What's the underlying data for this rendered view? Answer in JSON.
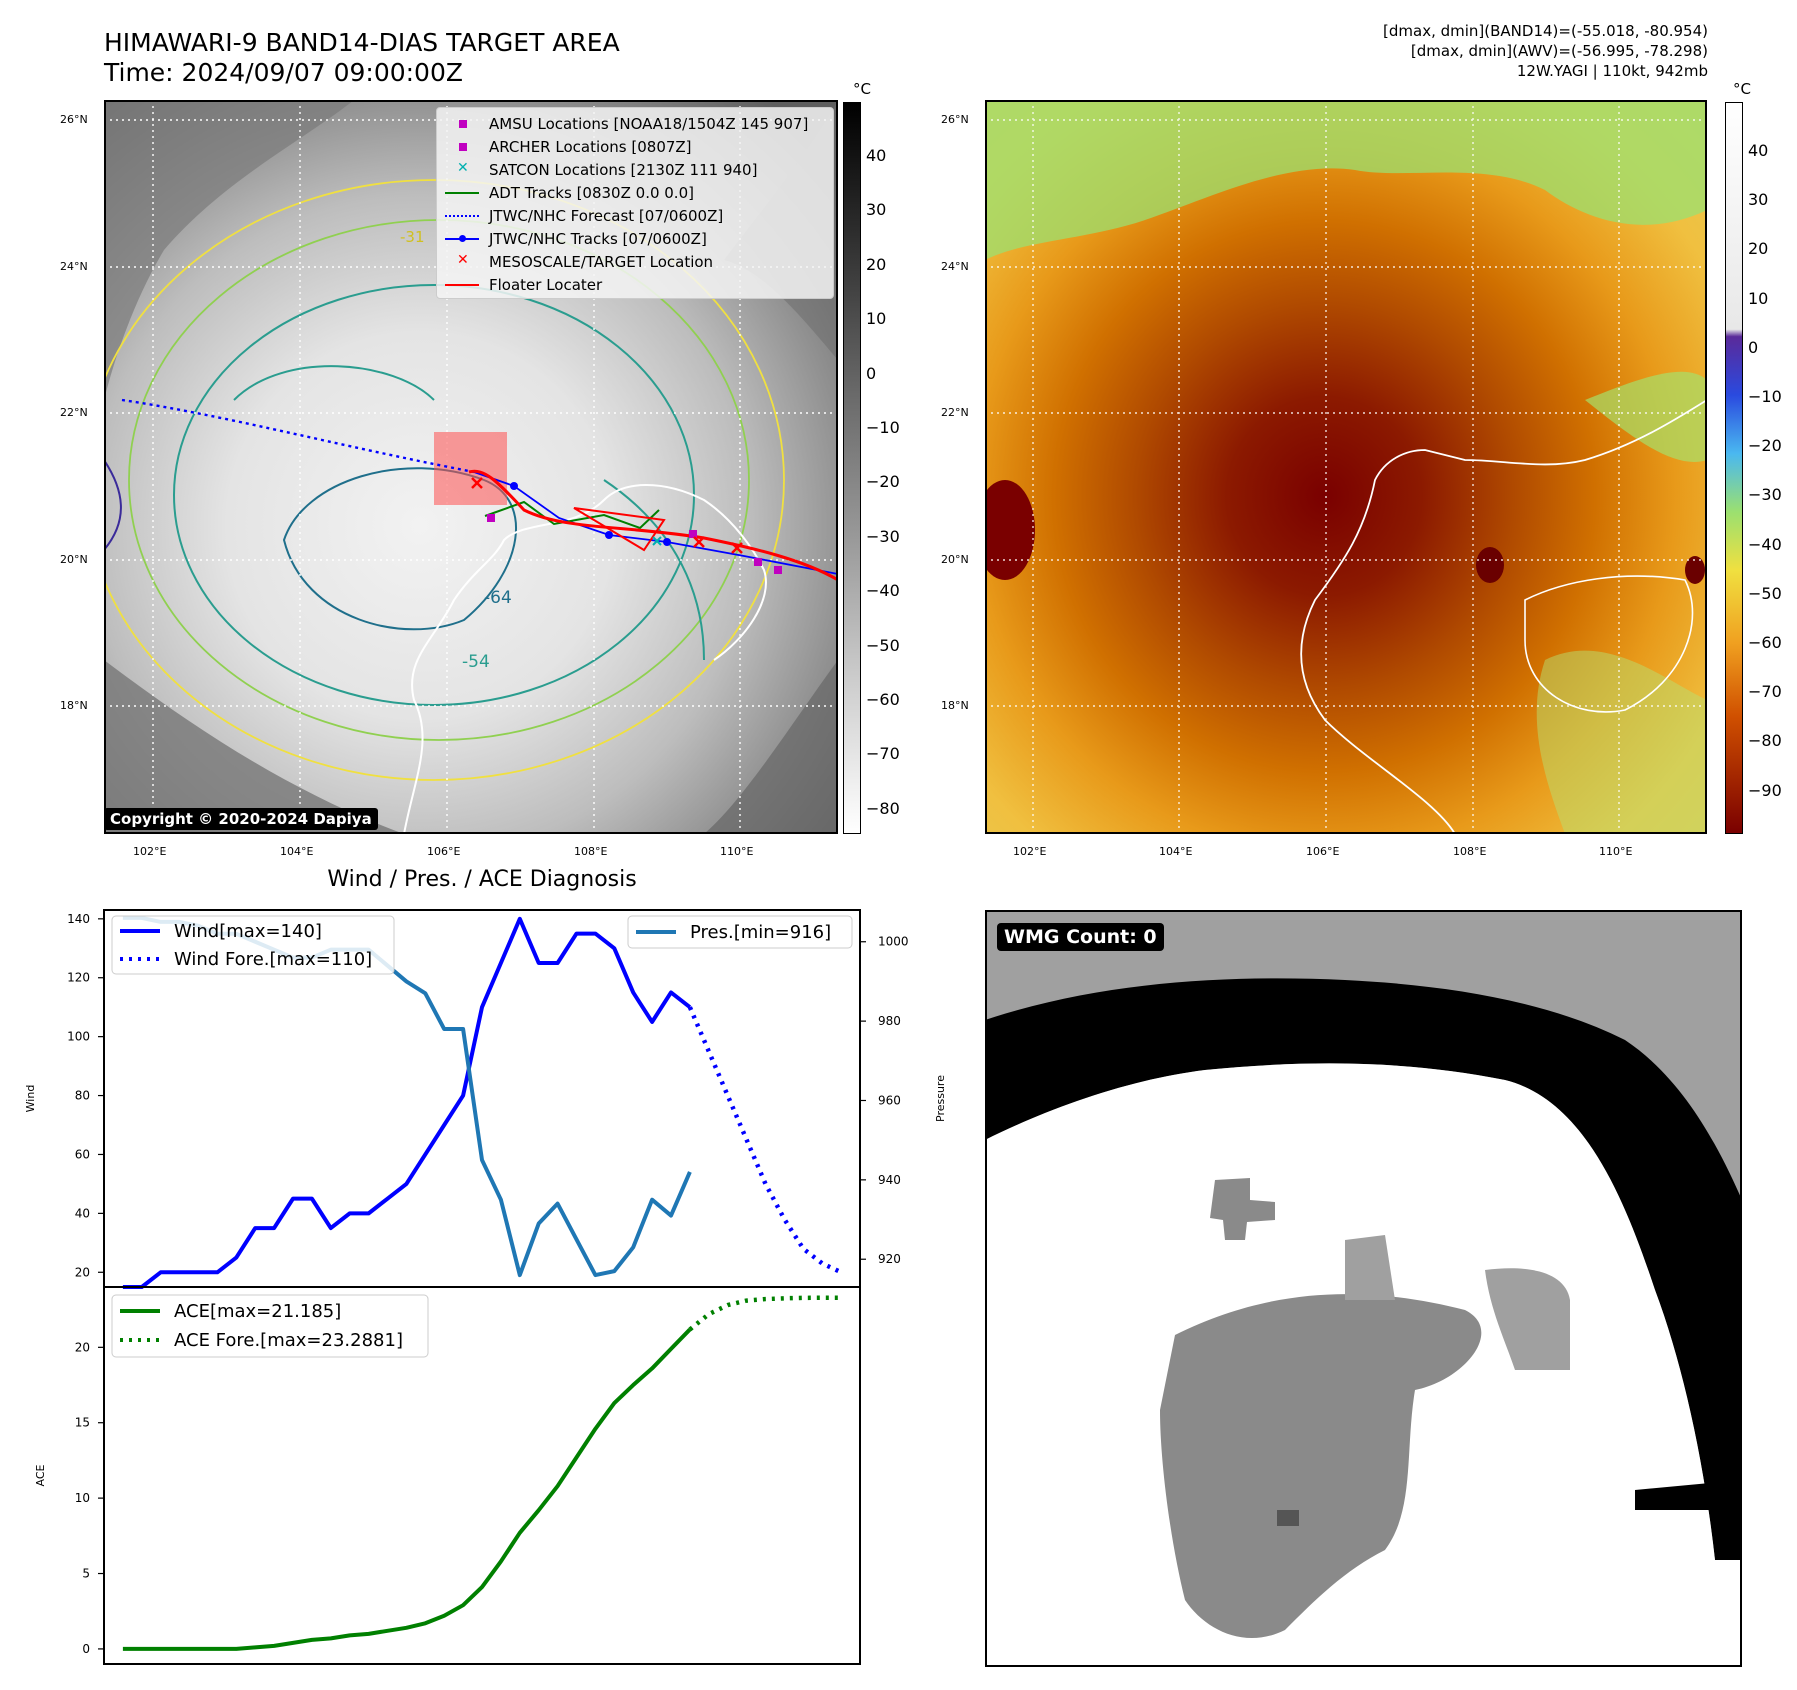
{
  "header": {
    "title_line1": "HIMAWARI-9 BAND14-DIAS TARGET AREA",
    "title_line2": "Time: 2024/09/07 09:00:00Z",
    "stat_line1": "[dmax, dmin](BAND14)=(-55.018, -80.954)",
    "stat_line2": "[dmax, dmin](AWV)=(-56.995, -78.298)",
    "stat_line3": "12W.YAGI | 110kt, 942mb"
  },
  "map": {
    "lat_labels": [
      "26°N",
      "24°N",
      "22°N",
      "20°N",
      "18°N"
    ],
    "lon_labels": [
      "102°E",
      "104°E",
      "106°E",
      "108°E",
      "110°E"
    ],
    "copyright": "Copyright © 2020-2024 Dapiya",
    "contour_labels": [
      "-64",
      "-54",
      "-31"
    ]
  },
  "legend_items": [
    {
      "label": "AMSU Locations [NOAA18/1504Z 145 907]",
      "marker": "square",
      "color": "#c000c0"
    },
    {
      "label": "ARCHER Locations [0807Z]",
      "marker": "square",
      "color": "#c000c0"
    },
    {
      "label": "SATCON Locations [2130Z 111 940]",
      "marker": "x",
      "color": "#00b0b0"
    },
    {
      "label": "ADT Tracks [0830Z 0.0 0.0]",
      "marker": "line",
      "color": "#008000"
    },
    {
      "label": "JTWC/NHC Forecast [07/0600Z]",
      "marker": "dotted",
      "color": "#0000ff"
    },
    {
      "label": "JTWC/NHC Tracks [07/0600Z]",
      "marker": "dotline",
      "color": "#0000ff"
    },
    {
      "label": "MESOSCALE/TARGET Location",
      "marker": "x",
      "color": "#ff0000"
    },
    {
      "label": "Floater Locater",
      "marker": "line",
      "color": "#ff0000"
    }
  ],
  "colorbar_left": {
    "unit": "°C",
    "ticks": [
      "40",
      "30",
      "20",
      "10",
      "0",
      "−10",
      "−20",
      "−30",
      "−40",
      "−50",
      "−60",
      "−70",
      "−80"
    ]
  },
  "colorbar_right": {
    "unit": "°C",
    "ticks": [
      "40",
      "30",
      "20",
      "10",
      "0",
      "−10",
      "−20",
      "−30",
      "−40",
      "−50",
      "−60",
      "−70",
      "−80",
      "−90"
    ]
  },
  "wmg": {
    "label": "WMG Count: 0"
  },
  "chart_data": {
    "type": "line",
    "title": "Wind / Pres. / ACE Diagnosis",
    "wind_pres": {
      "ylabel_left": "Wind",
      "ylabel_right": "Pressure",
      "ylim_left": [
        15,
        143
      ],
      "ylim_right": [
        913,
        1008
      ],
      "yticks_left": [
        20,
        40,
        60,
        80,
        100,
        120,
        140
      ],
      "yticks_right": [
        920,
        940,
        960,
        980,
        1000
      ],
      "legend_left": [
        "Wind[max=140]",
        "Wind Fore.[max=110]"
      ],
      "legend_right": [
        "Pres.[min=916]"
      ],
      "series": [
        {
          "name": "Wind[max=140]",
          "color": "#0000ff",
          "style": "solid",
          "x": [
            0,
            1,
            2,
            3,
            4,
            5,
            6,
            7,
            8,
            9,
            10,
            11,
            12,
            13,
            14,
            15,
            16,
            17,
            18,
            19,
            20,
            21,
            22,
            23,
            24,
            25,
            26,
            27,
            28,
            29,
            30
          ],
          "values": [
            15,
            15,
            20,
            20,
            20,
            20,
            25,
            35,
            35,
            45,
            45,
            35,
            40,
            40,
            45,
            50,
            60,
            70,
            80,
            110,
            125,
            140,
            125,
            125,
            135,
            135,
            130,
            115,
            105,
            115,
            110
          ]
        },
        {
          "name": "Wind Fore.[max=110]",
          "color": "#0000ff",
          "style": "dotted",
          "x": [
            30,
            31,
            32,
            33,
            34,
            35,
            36,
            37,
            38
          ],
          "values": [
            110,
            95,
            80,
            65,
            50,
            38,
            28,
            23,
            20
          ]
        },
        {
          "name": "Pres.[min=916]",
          "color": "#1f77b4",
          "style": "solid",
          "axis": "right",
          "x": [
            0,
            1,
            2,
            3,
            4,
            5,
            6,
            7,
            8,
            9,
            10,
            11,
            12,
            13,
            14,
            15,
            16,
            17,
            18,
            19,
            20,
            21,
            22,
            23,
            24,
            25,
            26,
            27,
            28,
            29,
            30
          ],
          "values": [
            1006,
            1006,
            1005,
            1005,
            1004,
            1002,
            1002,
            1000,
            998,
            996,
            996,
            998,
            998,
            998,
            994,
            990,
            987,
            978,
            978,
            945,
            935,
            916,
            929,
            934,
            925,
            916,
            917,
            923,
            935,
            931,
            942
          ]
        }
      ]
    },
    "ace": {
      "ylabel": "ACE",
      "ylim": [
        -1,
        24
      ],
      "yticks": [
        0,
        5,
        10,
        15,
        20
      ],
      "legend": [
        "ACE[max=21.185]",
        "ACE Fore.[max=23.2881]"
      ],
      "series": [
        {
          "name": "ACE[max=21.185]",
          "color": "#008000",
          "style": "solid",
          "x": [
            0,
            1,
            2,
            3,
            4,
            5,
            6,
            7,
            8,
            9,
            10,
            11,
            12,
            13,
            14,
            15,
            16,
            17,
            18,
            19,
            20,
            21,
            22,
            23,
            24,
            25,
            26,
            27,
            28,
            29,
            30
          ],
          "values": [
            0,
            0,
            0,
            0,
            0,
            0,
            0,
            0.1,
            0.2,
            0.4,
            0.6,
            0.7,
            0.9,
            1.0,
            1.2,
            1.4,
            1.7,
            2.2,
            2.9,
            4.1,
            5.8,
            7.7,
            9.2,
            10.8,
            12.7,
            14.6,
            16.3,
            17.5,
            18.6,
            19.9,
            21.185
          ]
        },
        {
          "name": "ACE Fore.[max=23.2881]",
          "color": "#008000",
          "style": "dotted",
          "x": [
            30,
            31,
            32,
            33,
            34,
            35,
            36,
            37,
            38
          ],
          "values": [
            21.185,
            22.2,
            22.8,
            23.1,
            23.2,
            23.25,
            23.28,
            23.29,
            23.29
          ]
        }
      ]
    }
  }
}
